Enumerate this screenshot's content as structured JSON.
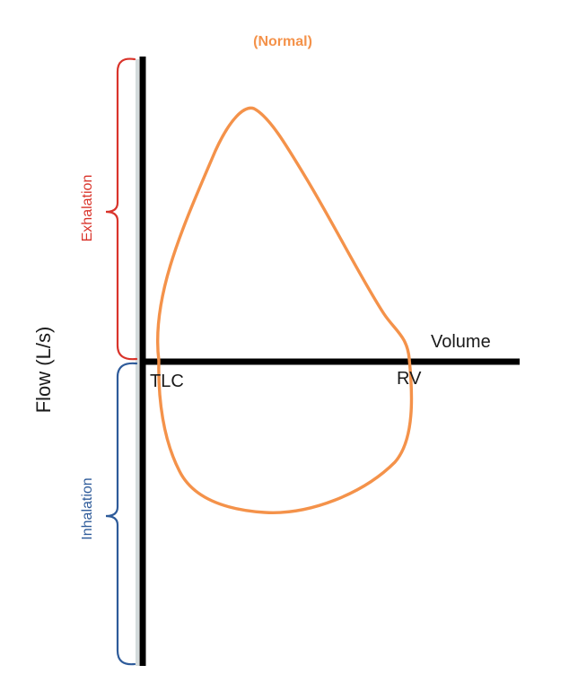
{
  "title": "(Normal)",
  "y_axis_label": "Flow (L/s)",
  "x_axis_label": "Volume",
  "left_point_label": "TLC",
  "right_point_label": "RV",
  "upper_bracket_label": "Exhalation",
  "lower_bracket_label": "Inhalation",
  "colors": {
    "loop": "#F4924A",
    "title": "#F4924A",
    "exhalation": "#D9342B",
    "inhalation": "#2E5B9A",
    "axes": "#000000",
    "text": "#1a1a1a"
  }
}
